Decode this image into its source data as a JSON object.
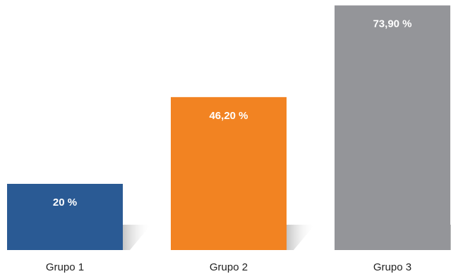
{
  "chart_data": {
    "type": "bar",
    "categories": [
      "Grupo 1",
      "Grupo 2",
      "Grupo 3"
    ],
    "values": [
      20,
      46.2,
      73.9
    ],
    "value_labels": [
      "20 %",
      "46,20 %",
      "73,90 %"
    ],
    "colors": [
      "#2a5a94",
      "#f28322",
      "#949599"
    ],
    "ylim": [
      0,
      80
    ],
    "grid": false,
    "legend": "none",
    "title": "",
    "xlabel": "",
    "ylabel": ""
  }
}
